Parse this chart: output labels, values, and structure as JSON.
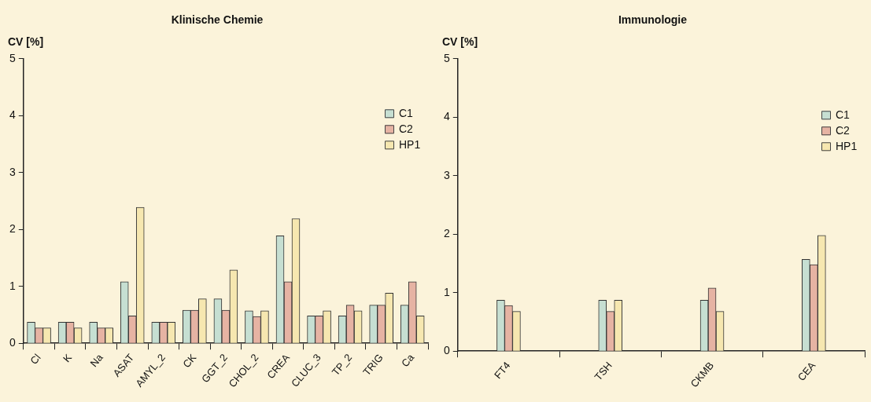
{
  "chart_data": [
    {
      "type": "bar",
      "title": "Klinische Chemie",
      "ylabel": "CV [%]",
      "categories": [
        "Cl",
        "K",
        "Na",
        "ASAT",
        "AMYL_2",
        "CK",
        "GGT_2",
        "CHOL_2",
        "CREA",
        "CLUC_3",
        "TP_2",
        "TRIG",
        "Ca"
      ],
      "series": [
        {
          "name": "C1",
          "color": "#c6dfd2",
          "values": [
            0.37,
            0.37,
            0.37,
            1.08,
            0.37,
            0.58,
            0.78,
            0.57,
            1.89,
            0.48,
            0.48,
            0.67,
            0.67
          ]
        },
        {
          "name": "C2",
          "color": "#e6b3a3",
          "values": [
            0.27,
            0.37,
            0.27,
            0.48,
            0.37,
            0.58,
            0.58,
            0.47,
            1.08,
            0.48,
            0.67,
            0.67,
            1.08
          ]
        },
        {
          "name": "HP1",
          "color": "#f6e7b0",
          "values": [
            0.27,
            0.27,
            0.27,
            2.39,
            0.37,
            0.78,
            1.29,
            0.57,
            2.19,
            0.57,
            0.57,
            0.88,
            0.48
          ]
        }
      ],
      "ylim": [
        0,
        5
      ],
      "yticks": [
        0,
        1,
        2,
        3,
        4,
        5
      ],
      "legend": "top right",
      "grid": false
    },
    {
      "type": "bar",
      "title": "Immunologie",
      "ylabel": "CV [%]",
      "categories": [
        "FT4",
        "TSH",
        "CKMB",
        "CEA"
      ],
      "series": [
        {
          "name": "C1",
          "color": "#c6dfd2",
          "values": [
            0.87,
            0.87,
            0.87,
            1.57
          ]
        },
        {
          "name": "C2",
          "color": "#e6b3a3",
          "values": [
            0.78,
            0.68,
            1.08,
            1.48
          ]
        },
        {
          "name": "HP1",
          "color": "#f6e7b0",
          "values": [
            0.68,
            0.87,
            0.68,
            1.98
          ]
        }
      ],
      "ylim": [
        0,
        5
      ],
      "yticks": [
        0,
        1,
        2,
        3,
        4,
        5
      ],
      "legend": "top right",
      "grid": false
    }
  ]
}
